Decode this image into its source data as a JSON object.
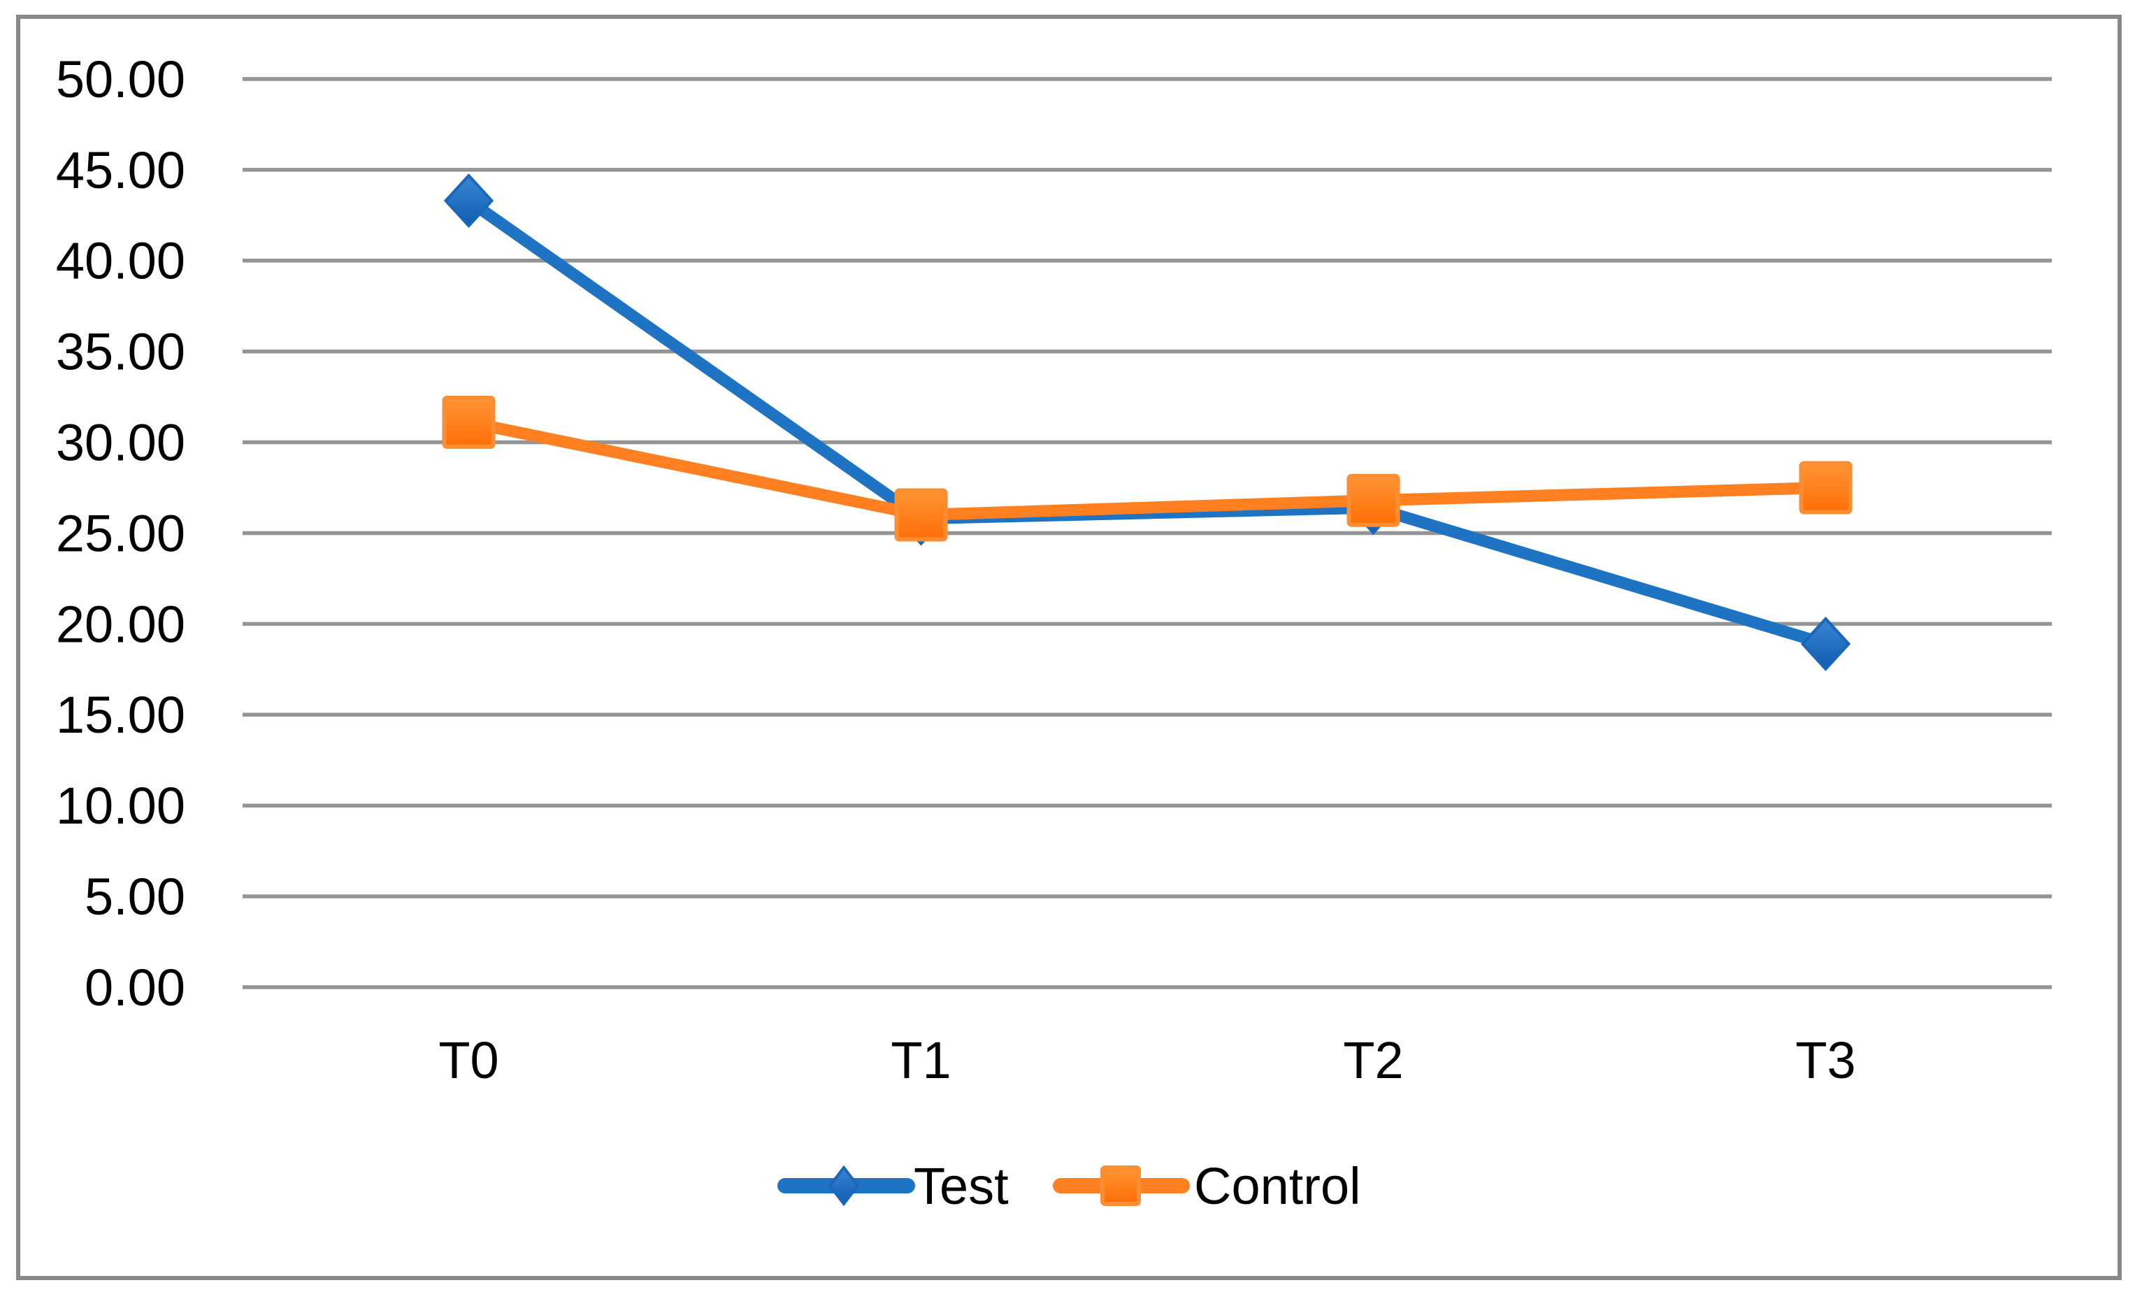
{
  "chart_data": {
    "type": "line",
    "categories": [
      "T0",
      "T1",
      "T2",
      "T3"
    ],
    "series": [
      {
        "name": "Test",
        "marker": "diamond",
        "color": "#1E73C3",
        "marker_gradient": [
          "#3C86D3",
          "#0E5CB2"
        ],
        "marker_stroke": "#1A66B8",
        "values": [
          43.3,
          25.8,
          26.4,
          18.9
        ]
      },
      {
        "name": "Control",
        "marker": "square",
        "color": "#FF7F21",
        "marker_gradient": [
          "#FF9434",
          "#FF6E05"
        ],
        "marker_stroke": "#FB8E33",
        "values": [
          31.1,
          26.0,
          26.8,
          27.5
        ]
      }
    ],
    "ylim": [
      0,
      50
    ],
    "y_tick_step": 5,
    "y_tick_labels": [
      "0.00",
      "5.00",
      "10.00",
      "15.00",
      "20.00",
      "25.00",
      "30.00",
      "35.00",
      "40.00",
      "45.00",
      "50.00"
    ],
    "grid": "horizontal",
    "gridline_color": "#949494",
    "border_color": "#888888",
    "text_color": "#000000",
    "legend": {
      "position": "bottom",
      "entries": [
        "Test",
        "Control"
      ]
    }
  }
}
